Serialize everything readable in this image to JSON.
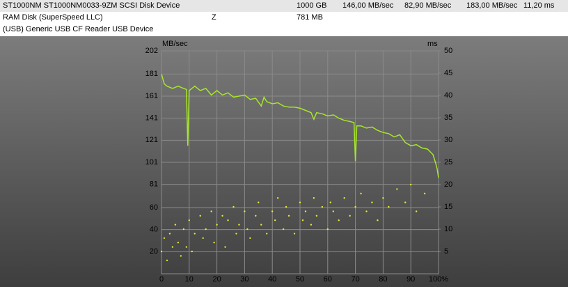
{
  "table": {
    "rows": [
      {
        "0": "ST1000NM ST1000NM0033-9ZM SCSI Disk Device",
        "2": "1000 GB",
        "3": "146,00 MB/sec",
        "4": "82,90 MB/sec",
        "5": "183,00 MB/sec",
        "6": "11,20 ms"
      },
      {
        "0": "RAM Disk (SuperSpeed LLC)",
        "1": "Z",
        "2": "781 MB"
      },
      {
        "0": "(USB) Generic USB CF Reader USB Device"
      }
    ]
  },
  "chart_data": {
    "type": "line",
    "y_label": "MB/sec",
    "y2_label": "ms",
    "grid": true,
    "xlim": [
      0,
      100
    ],
    "xticks": [
      0,
      10,
      20,
      30,
      40,
      50,
      60,
      70,
      80,
      90,
      {
        "value": 100,
        "label": "100%"
      }
    ],
    "ylim": [
      0,
      202
    ],
    "yticks": [
      20,
      40,
      60,
      81,
      101,
      121,
      141,
      161,
      181,
      202
    ],
    "y2lim": [
      0,
      50
    ],
    "y2ticks": [
      5,
      10,
      15,
      20,
      25,
      30,
      35,
      40,
      45,
      50
    ],
    "series": [
      {
        "type": "line",
        "color": "#a6e628",
        "x": [
          0,
          1,
          2,
          4,
          6,
          8,
          9,
          9.5,
          10,
          12,
          14,
          16,
          18,
          20,
          22,
          24,
          26,
          28,
          30,
          32,
          34,
          36,
          37,
          38,
          40,
          42,
          44,
          46,
          48,
          50,
          52,
          54,
          55,
          56,
          58,
          60,
          62,
          64,
          66,
          68,
          69.5,
          70,
          70.5,
          72,
          74,
          76,
          78,
          80,
          82,
          84,
          86,
          88,
          90,
          92,
          94,
          96,
          98,
          99,
          99.5,
          100
        ],
        "values": [
          181,
          172,
          170,
          168,
          170,
          168,
          167,
          116,
          166,
          170,
          166,
          168,
          162,
          166,
          162,
          164,
          160,
          161,
          162,
          158,
          159,
          152,
          160,
          156,
          154,
          155,
          152,
          151,
          151,
          150,
          148,
          146,
          140,
          146,
          145,
          143,
          144,
          141,
          139,
          138,
          137,
          102,
          134,
          134,
          132,
          133,
          130,
          128,
          127,
          124,
          126,
          119,
          116,
          117,
          114,
          113,
          108,
          100,
          95,
          87
        ]
      },
      {
        "type": "scatter",
        "axis": "y2",
        "color": "#e8e83a",
        "x": [
          0,
          1,
          2,
          3,
          4,
          5,
          6,
          7,
          8,
          9,
          10,
          11,
          12,
          14,
          15,
          16,
          18,
          19,
          20,
          22,
          23,
          24,
          26,
          27,
          28,
          30,
          31,
          32,
          34,
          35,
          36,
          38,
          40,
          41,
          42,
          44,
          45,
          46,
          48,
          50,
          51,
          52,
          54,
          55,
          56,
          58,
          60,
          61,
          62,
          64,
          66,
          68,
          70,
          72,
          74,
          76,
          78,
          80,
          82,
          85,
          88,
          90,
          92,
          95
        ],
        "values": [
          5,
          8,
          3,
          9,
          6,
          11,
          7,
          4,
          10,
          6,
          12,
          5,
          9,
          13,
          8,
          10,
          14,
          7,
          11,
          13,
          6,
          12,
          15,
          9,
          11,
          14,
          10,
          8,
          13,
          16,
          11,
          9,
          14,
          12,
          17,
          10,
          15,
          13,
          9,
          16,
          12,
          14,
          11,
          17,
          13,
          15,
          10,
          16,
          14,
          12,
          17,
          13,
          15,
          18,
          14,
          16,
          12,
          17,
          15,
          19,
          16,
          20,
          14,
          18
        ]
      }
    ]
  }
}
